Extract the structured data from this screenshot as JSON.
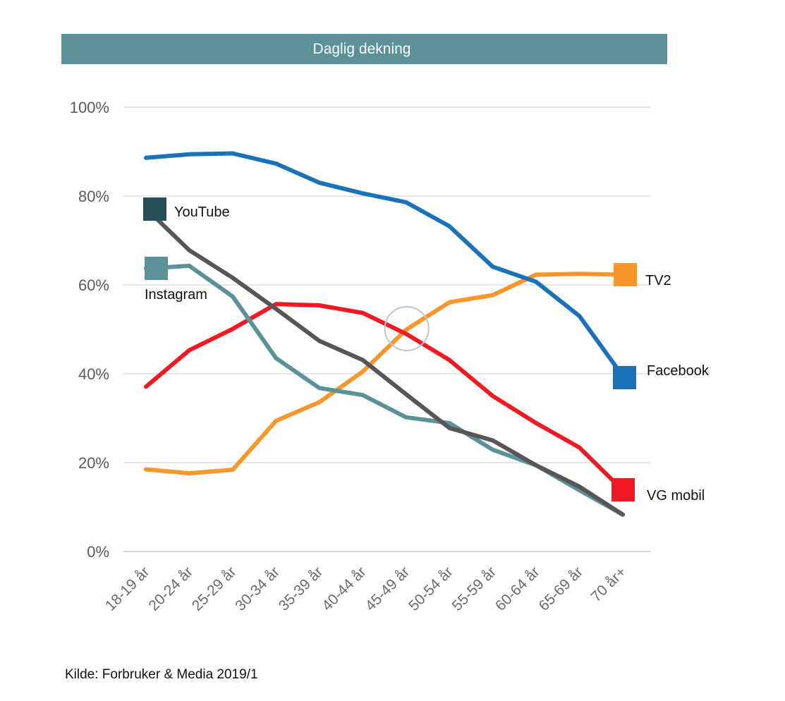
{
  "chart_data": {
    "type": "line",
    "title": "Daglig dekning",
    "categories": [
      "18-19 år",
      "20-24 år",
      "25-29 år",
      "30-34 år",
      "35-39 år",
      "40-44 år",
      "45-49 år",
      "50-54 år",
      "55-59 år",
      "60-64 år",
      "65-69 år",
      "70 år+"
    ],
    "y_ticks": [
      "0%",
      "20%",
      "40%",
      "60%",
      "80%",
      "100%"
    ],
    "ylim": [
      0,
      100
    ],
    "grid": true,
    "series": [
      {
        "name": "TV2",
        "color": "#f7962b",
        "values": [
          18.5,
          17.6,
          18.4,
          29.4,
          33.6,
          40.5,
          49.9,
          56.1,
          57.7,
          62.3,
          62.5,
          62.3
        ]
      },
      {
        "name": "VG mobil",
        "color": "#f11a24",
        "values": [
          37.1,
          45.3,
          50.1,
          55.7,
          55.4,
          53.7,
          49.0,
          43.1,
          35.0,
          28.9,
          23.4,
          13.8
        ]
      },
      {
        "name": "Instagram",
        "color": "#5a9298",
        "values": [
          63.7,
          64.3,
          57.4,
          43.5,
          36.8,
          35.2,
          30.2,
          28.9,
          22.9,
          19.4,
          13.8,
          8.3
        ]
      },
      {
        "name": "YouTube",
        "color": "#575556",
        "values": [
          77.2,
          67.8,
          61.6,
          54.6,
          47.4,
          43.1,
          35.4,
          27.8,
          25.0,
          19.4,
          14.6,
          8.3
        ]
      },
      {
        "name": "Facebook",
        "color": "#1a72bb",
        "values": [
          88.6,
          89.4,
          89.6,
          87.3,
          83.0,
          80.6,
          78.6,
          73.2,
          64.1,
          60.7,
          53.0,
          39.5
        ]
      }
    ],
    "legend": [
      {
        "name": "YouTube",
        "color": "#264f57"
      },
      {
        "name": "Instagram",
        "color": "#5a9298"
      },
      {
        "name": "TV2",
        "color": "#f7962b"
      },
      {
        "name": "Facebook",
        "color": "#1a72bb"
      },
      {
        "name": "VG mobil",
        "color": "#f11a24"
      }
    ],
    "highlight": {
      "category": "45-49 år",
      "value": 50
    }
  },
  "source": "Kilde: Forbruker & Media 2019/1",
  "colors": {
    "title_bar": "#5a9298",
    "grid": "#d6d6d6",
    "axis": "#bdbdbd"
  }
}
